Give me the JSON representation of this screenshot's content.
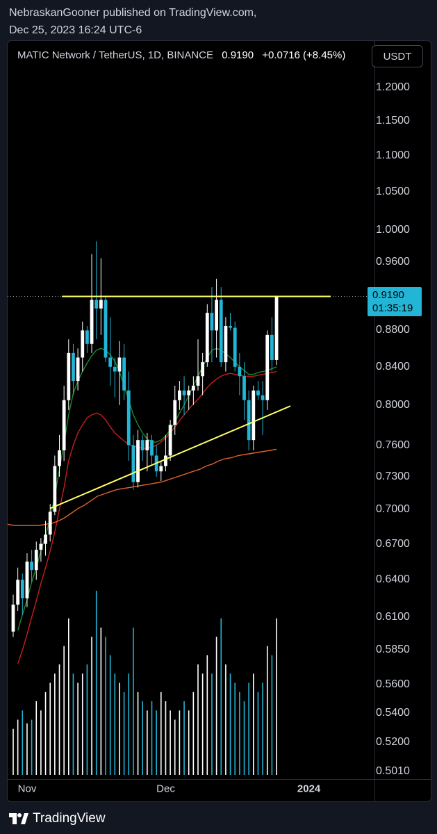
{
  "publisher": {
    "line1": "NebraskanGooner published on TradingView.com,",
    "line2": "Dec 25, 2023 16:24 UTC-6"
  },
  "legend": {
    "symbol": "MATIC Network / TetherUS, 1D, BINANCE",
    "last": "0.9190",
    "change": "+0.0716 (+8.45%)"
  },
  "currency_button": "USDT",
  "price_tag": {
    "price": "0.9190",
    "countdown": "01:35:19"
  },
  "brand": "TradingView",
  "colors": {
    "background": "#000000",
    "up": "#ffffff",
    "down": "#22b5d6",
    "resistance": "#ffff66",
    "trendline": "#ffff66",
    "ma_fast": "#1f8a2a",
    "ma_mid": "#c81e1e",
    "ma_slow": "#e0632b"
  },
  "chart_data": {
    "type": "candlestick",
    "title": "",
    "interval": "1D",
    "scale": "log",
    "ylim": [
      0.501,
      1.2
    ],
    "y_ticks": [
      "1.2000",
      "1.1500",
      "1.1000",
      "1.0500",
      "1.0000",
      "0.9600",
      "0.9190",
      "0.8800",
      "0.8400",
      "0.8000",
      "0.7600",
      "0.7300",
      "0.7000",
      "0.6700",
      "0.6400",
      "0.6100",
      "0.5850",
      "0.5600",
      "0.5400",
      "0.5200",
      "0.5010"
    ],
    "x_ticks": [
      "Nov",
      "Dec",
      "2024"
    ],
    "candles": [
      {
        "date": "2023-10-29",
        "o": 0.599,
        "h": 0.628,
        "l": 0.595,
        "c": 0.62
      },
      {
        "date": "2023-10-30",
        "o": 0.62,
        "h": 0.65,
        "l": 0.615,
        "c": 0.64
      },
      {
        "date": "2023-10-31",
        "o": 0.64,
        "h": 0.645,
        "l": 0.612,
        "c": 0.625
      },
      {
        "date": "2023-11-01",
        "o": 0.625,
        "h": 0.662,
        "l": 0.618,
        "c": 0.655
      },
      {
        "date": "2023-11-02",
        "o": 0.655,
        "h": 0.665,
        "l": 0.638,
        "c": 0.648
      },
      {
        "date": "2023-11-03",
        "o": 0.648,
        "h": 0.672,
        "l": 0.64,
        "c": 0.665
      },
      {
        "date": "2023-11-04",
        "o": 0.665,
        "h": 0.675,
        "l": 0.655,
        "c": 0.67
      },
      {
        "date": "2023-11-05",
        "o": 0.67,
        "h": 0.69,
        "l": 0.66,
        "c": 0.678
      },
      {
        "date": "2023-11-06",
        "o": 0.678,
        "h": 0.705,
        "l": 0.672,
        "c": 0.698
      },
      {
        "date": "2023-11-07",
        "o": 0.698,
        "h": 0.75,
        "l": 0.695,
        "c": 0.74
      },
      {
        "date": "2023-11-08",
        "o": 0.74,
        "h": 0.77,
        "l": 0.73,
        "c": 0.755
      },
      {
        "date": "2023-11-09",
        "o": 0.755,
        "h": 0.82,
        "l": 0.745,
        "c": 0.805
      },
      {
        "date": "2023-11-10",
        "o": 0.805,
        "h": 0.87,
        "l": 0.795,
        "c": 0.855
      },
      {
        "date": "2023-11-11",
        "o": 0.855,
        "h": 0.865,
        "l": 0.81,
        "c": 0.825
      },
      {
        "date": "2023-11-12",
        "o": 0.825,
        "h": 0.86,
        "l": 0.815,
        "c": 0.85
      },
      {
        "date": "2023-11-13",
        "o": 0.85,
        "h": 0.89,
        "l": 0.835,
        "c": 0.88
      },
      {
        "date": "2023-11-14",
        "o": 0.88,
        "h": 0.885,
        "l": 0.855,
        "c": 0.865
      },
      {
        "date": "2023-11-15",
        "o": 0.865,
        "h": 0.97,
        "l": 0.855,
        "c": 0.915
      },
      {
        "date": "2023-11-16",
        "o": 0.915,
        "h": 0.986,
        "l": 0.87,
        "c": 0.905
      },
      {
        "date": "2023-11-17",
        "o": 0.905,
        "h": 0.965,
        "l": 0.875,
        "c": 0.915
      },
      {
        "date": "2023-11-18",
        "o": 0.915,
        "h": 0.92,
        "l": 0.845,
        "c": 0.85
      },
      {
        "date": "2023-11-19",
        "o": 0.85,
        "h": 0.895,
        "l": 0.82,
        "c": 0.84
      },
      {
        "date": "2023-11-20",
        "o": 0.84,
        "h": 0.85,
        "l": 0.808,
        "c": 0.835
      },
      {
        "date": "2023-11-21",
        "o": 0.835,
        "h": 0.868,
        "l": 0.8,
        "c": 0.85
      },
      {
        "date": "2023-11-22",
        "o": 0.85,
        "h": 0.865,
        "l": 0.805,
        "c": 0.815
      },
      {
        "date": "2023-11-23",
        "o": 0.815,
        "h": 0.835,
        "l": 0.745,
        "c": 0.76
      },
      {
        "date": "2023-11-24",
        "o": 0.76,
        "h": 0.77,
        "l": 0.718,
        "c": 0.725
      },
      {
        "date": "2023-11-25",
        "o": 0.725,
        "h": 0.775,
        "l": 0.72,
        "c": 0.765
      },
      {
        "date": "2023-11-26",
        "o": 0.765,
        "h": 0.77,
        "l": 0.745,
        "c": 0.755
      },
      {
        "date": "2023-11-27",
        "o": 0.755,
        "h": 0.772,
        "l": 0.735,
        "c": 0.765
      },
      {
        "date": "2023-11-28",
        "o": 0.765,
        "h": 0.77,
        "l": 0.74,
        "c": 0.75
      },
      {
        "date": "2023-11-29",
        "o": 0.75,
        "h": 0.76,
        "l": 0.73,
        "c": 0.735
      },
      {
        "date": "2023-11-30",
        "o": 0.735,
        "h": 0.745,
        "l": 0.726,
        "c": 0.74
      },
      {
        "date": "2023-12-01",
        "o": 0.74,
        "h": 0.77,
        "l": 0.735,
        "c": 0.75
      },
      {
        "date": "2023-12-02",
        "o": 0.75,
        "h": 0.785,
        "l": 0.745,
        "c": 0.78
      },
      {
        "date": "2023-12-03",
        "o": 0.78,
        "h": 0.82,
        "l": 0.77,
        "c": 0.805
      },
      {
        "date": "2023-12-04",
        "o": 0.805,
        "h": 0.825,
        "l": 0.795,
        "c": 0.815
      },
      {
        "date": "2023-12-05",
        "o": 0.815,
        "h": 0.83,
        "l": 0.79,
        "c": 0.81
      },
      {
        "date": "2023-12-06",
        "o": 0.81,
        "h": 0.82,
        "l": 0.795,
        "c": 0.815
      },
      {
        "date": "2023-12-07",
        "o": 0.815,
        "h": 0.83,
        "l": 0.8,
        "c": 0.82
      },
      {
        "date": "2023-12-08",
        "o": 0.82,
        "h": 0.87,
        "l": 0.815,
        "c": 0.83
      },
      {
        "date": "2023-12-09",
        "o": 0.83,
        "h": 0.855,
        "l": 0.81,
        "c": 0.845
      },
      {
        "date": "2023-12-10",
        "o": 0.845,
        "h": 0.91,
        "l": 0.84,
        "c": 0.9
      },
      {
        "date": "2023-12-11",
        "o": 0.9,
        "h": 0.93,
        "l": 0.845,
        "c": 0.88
      },
      {
        "date": "2023-12-12",
        "o": 0.88,
        "h": 0.94,
        "l": 0.85,
        "c": 0.915
      },
      {
        "date": "2023-12-13",
        "o": 0.915,
        "h": 0.93,
        "l": 0.84,
        "c": 0.845
      },
      {
        "date": "2023-12-14",
        "o": 0.845,
        "h": 0.895,
        "l": 0.835,
        "c": 0.885
      },
      {
        "date": "2023-12-15",
        "o": 0.885,
        "h": 0.9,
        "l": 0.88,
        "c": 0.883
      },
      {
        "date": "2023-12-16",
        "o": 0.883,
        "h": 0.89,
        "l": 0.835,
        "c": 0.84
      },
      {
        "date": "2023-12-17",
        "o": 0.84,
        "h": 0.855,
        "l": 0.81,
        "c": 0.83
      },
      {
        "date": "2023-12-18",
        "o": 0.83,
        "h": 0.845,
        "l": 0.785,
        "c": 0.805
      },
      {
        "date": "2023-12-19",
        "o": 0.805,
        "h": 0.815,
        "l": 0.755,
        "c": 0.765
      },
      {
        "date": "2023-12-20",
        "o": 0.765,
        "h": 0.82,
        "l": 0.755,
        "c": 0.815
      },
      {
        "date": "2023-12-21",
        "o": 0.815,
        "h": 0.825,
        "l": 0.805,
        "c": 0.81
      },
      {
        "date": "2023-12-22",
        "o": 0.81,
        "h": 0.825,
        "l": 0.77,
        "c": 0.805
      },
      {
        "date": "2023-12-23",
        "o": 0.805,
        "h": 0.88,
        "l": 0.795,
        "c": 0.875
      },
      {
        "date": "2023-12-24",
        "o": 0.875,
        "h": 0.895,
        "l": 0.835,
        "c": 0.8474
      },
      {
        "date": "2023-12-25",
        "o": 0.8474,
        "h": 0.92,
        "l": 0.842,
        "c": 0.919
      }
    ],
    "volume_relative": [
      0.25,
      0.3,
      0.35,
      0.28,
      0.3,
      0.4,
      0.35,
      0.45,
      0.5,
      0.55,
      0.6,
      0.7,
      0.85,
      0.55,
      0.5,
      0.55,
      0.6,
      0.75,
      1.0,
      0.8,
      0.75,
      0.65,
      0.55,
      0.5,
      0.45,
      0.55,
      0.8,
      0.45,
      0.4,
      0.35,
      0.4,
      0.35,
      0.45,
      0.4,
      0.35,
      0.3,
      0.35,
      0.4,
      0.35,
      0.45,
      0.6,
      0.55,
      0.65,
      0.55,
      0.75,
      0.85,
      0.6,
      0.55,
      0.5,
      0.45,
      0.4,
      0.5,
      0.55,
      0.45,
      0.5,
      0.7,
      0.65,
      0.85
    ],
    "moving_averages": [
      {
        "kind": "fast",
        "values": [
          0.6,
          0.612,
          0.624,
          0.638,
          0.65,
          0.664,
          0.677,
          0.692,
          0.712,
          0.737,
          0.762,
          0.79,
          0.812,
          0.825,
          0.835,
          0.844,
          0.852,
          0.858,
          0.86,
          0.858,
          0.853,
          0.846,
          0.835,
          0.82,
          0.805,
          0.79,
          0.78,
          0.772,
          0.766,
          0.763,
          0.763,
          0.765,
          0.769,
          0.775,
          0.783,
          0.792,
          0.8,
          0.81,
          0.82,
          0.83,
          0.84,
          0.85,
          0.858,
          0.86,
          0.858,
          0.854,
          0.85,
          0.845,
          0.84,
          0.836,
          0.832,
          0.832,
          0.834,
          0.835,
          0.836,
          0.838,
          0.84
        ]
      },
      {
        "kind": "mid",
        "values": [
          0.575,
          0.585,
          0.597,
          0.61,
          0.623,
          0.637,
          0.65,
          0.664,
          0.68,
          0.7,
          0.72,
          0.745,
          0.76,
          0.772,
          0.78,
          0.787,
          0.79,
          0.792,
          0.79,
          0.785,
          0.778,
          0.772,
          0.768,
          0.764,
          0.761,
          0.759,
          0.758,
          0.757,
          0.757,
          0.758,
          0.76,
          0.763,
          0.767,
          0.772,
          0.778,
          0.784,
          0.79,
          0.796,
          0.801,
          0.806,
          0.812,
          0.818,
          0.823,
          0.827,
          0.83,
          0.832,
          0.833,
          0.832,
          0.831,
          0.83,
          0.83,
          0.83,
          0.831,
          0.832,
          0.833,
          0.834,
          0.835
        ]
      },
      {
        "kind": "slow",
        "values": [
          0.687,
          0.686,
          0.686,
          0.686,
          0.686,
          0.686,
          0.687,
          0.688,
          0.69,
          0.693,
          0.697,
          0.701,
          0.704,
          0.708,
          0.712,
          0.714,
          0.716,
          0.718,
          0.719,
          0.72,
          0.721,
          0.722,
          0.723,
          0.724,
          0.725,
          0.727,
          0.729,
          0.731,
          0.733,
          0.735,
          0.737,
          0.74,
          0.742,
          0.745,
          0.747,
          0.748,
          0.75,
          0.751,
          0.752,
          0.753,
          0.754,
          0.755,
          0.756
        ]
      }
    ],
    "resistance_level": 0.919,
    "trendline": [
      {
        "date": "2023-11-06",
        "price": 0.701
      },
      {
        "date": "2023-12-28",
        "price": 0.799
      }
    ]
  }
}
